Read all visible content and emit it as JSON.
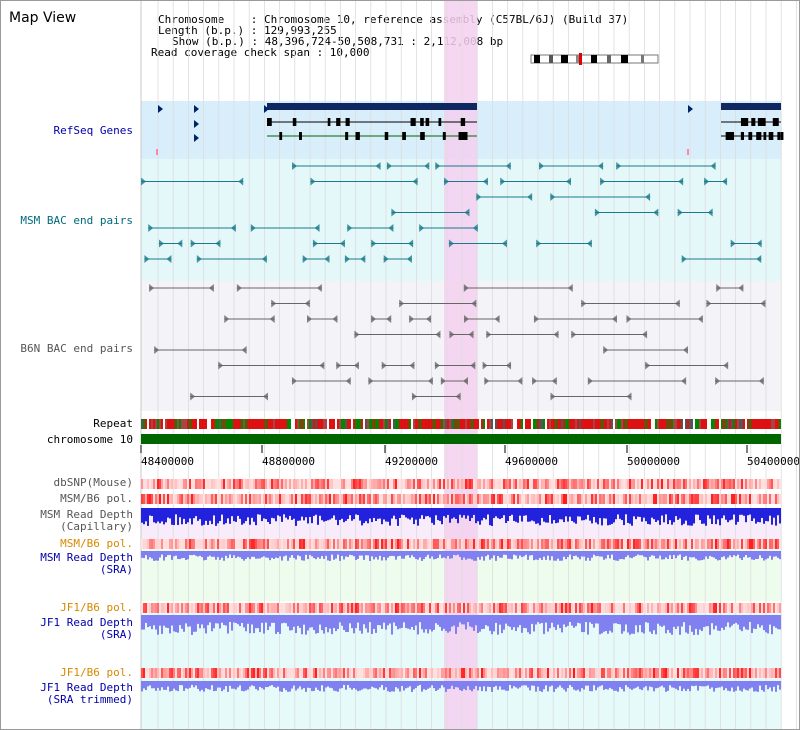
{
  "title": "Map View",
  "info": {
    "chromosome": "Chromosome    : Chromosome 10, reference assembly (C57BL/6J) (Build 37)",
    "length": "Length (b.p.) : 129,993,255",
    "show": "Show (b.p.) : 48,396,724-50,508,731 : 2,112,008 bp",
    "read_span": "Read coverage check span : 10,000"
  },
  "tracks": {
    "refseq": "RefSeq Genes",
    "msm_bac": "MSM BAC end pairs",
    "b6n_bac": "B6N BAC end pairs",
    "repeat": "Repeat",
    "chromosome": "chromosome 10",
    "dbsnp": "dbSNP(Mouse)",
    "msm_b6_pol_1": "MSM/B6 pol.",
    "msm_depth_cap_1": "MSM Read Depth",
    "msm_depth_cap_2": "(Capillary)",
    "msm_b6_pol_2": "MSM/B6 pol.",
    "msm_depth_sra_1": "MSM Read Depth",
    "msm_depth_sra_2": "(SRA)",
    "jf1_b6_pol_1": "JF1/B6 pol.",
    "jf1_depth_sra_1": "JF1 Read Depth",
    "jf1_depth_sra_2": "(SRA)",
    "jf1_b6_pol_2": "JF1/B6 pol.",
    "jf1_depth_trim_1": "JF1 Read Depth",
    "jf1_depth_trim_2": "(SRA trimmed)"
  },
  "axis": {
    "ticks": [
      "48400000",
      "48800000",
      "49200000",
      "49600000",
      "50000000",
      "50400000"
    ]
  },
  "colors": {
    "highlight": "#f4d0f0",
    "refseq_bg": "#d8eefa",
    "msm_bg": "#e4f8fa",
    "b6n_bg": "#f4f4f8",
    "depth_blue": "#2222dd",
    "depth_light": "#8080f0",
    "chrom_green": "#006600"
  }
}
